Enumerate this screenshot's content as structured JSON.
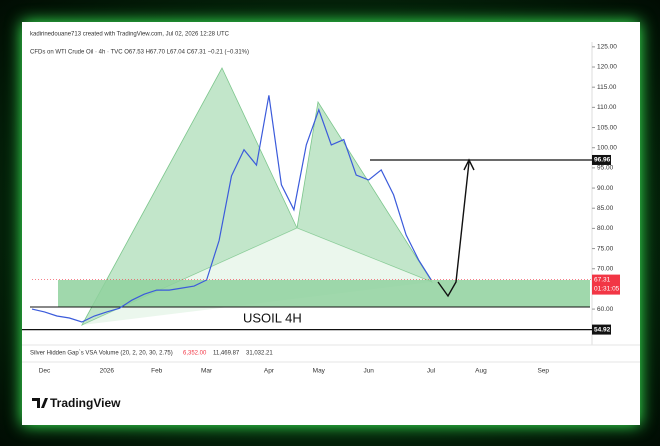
{
  "header": "kadirinedouane713 created with TradingView.com, Jul 02, 2026 12:28 UTC",
  "chart_data": {
    "type": "line",
    "title": "CFDs on WTI Crude Oil · 4h · TVC  O67.53 H67.70 L67.04 C67.31 −0.21 (−0.31%)",
    "annotation": "USOIL 4H",
    "categories": [
      null,
      "Dec",
      null,
      null,
      null,
      null,
      "2026",
      null,
      null,
      null,
      "Feb",
      null,
      null,
      null,
      "Mar",
      null,
      null,
      null,
      null,
      "Apr",
      null,
      null,
      null,
      "May",
      null,
      null,
      null,
      "Jun",
      null,
      null,
      null,
      null,
      "Jul",
      null,
      null,
      null,
      "Aug",
      null,
      null,
      null,
      null,
      "Sep",
      null,
      null,
      null
    ],
    "series": [
      {
        "name": "USOIL",
        "color": "#3b5bdb",
        "values": [
          60,
          59.3,
          58.3,
          57.8,
          56.8,
          58.3,
          59.3,
          60.2,
          62.2,
          63.7,
          64.7,
          64.7,
          65.2,
          65.7,
          67.2,
          77,
          93,
          99.5,
          95.7,
          113,
          90.8,
          84.6,
          100.7,
          109.4,
          100.7,
          102,
          93.2,
          92,
          94.5,
          88.3,
          78.4,
          72.2,
          67.31,
          null,
          null,
          null,
          null,
          null,
          null,
          null,
          null,
          null,
          null,
          null,
          null
        ]
      }
    ],
    "ylim": [
      51.1,
      126.2
    ],
    "yticks": [
      {
        "value": 60,
        "label": "60.00"
      },
      {
        "value": 70,
        "label": "70.00"
      },
      {
        "value": 75,
        "label": "75.00"
      },
      {
        "value": 80,
        "label": "80.00"
      },
      {
        "value": 85,
        "label": "85.00"
      },
      {
        "value": 90,
        "label": "90.00"
      },
      {
        "value": 95,
        "label": "95.00"
      },
      {
        "value": 100,
        "label": "100.00"
      },
      {
        "value": 105,
        "label": "105.00"
      },
      {
        "value": 110,
        "label": "110.00"
      },
      {
        "value": 115,
        "label": "115.00"
      },
      {
        "value": 120,
        "label": "120.00"
      },
      {
        "value": 125,
        "label": "125.00"
      }
    ],
    "price_lines": [
      96.96,
      54.92
    ],
    "last_price": 67.31,
    "countdown": "01:31:05",
    "last_price_color": "#f23645",
    "indicator": "Silver Hidden Gap`s VSA Volume (20, 2, 20, 30, 2.75)",
    "indicator_values": [
      "6,352.00",
      "11,469.87",
      "31,032.21"
    ]
  },
  "logo": "TradingView"
}
